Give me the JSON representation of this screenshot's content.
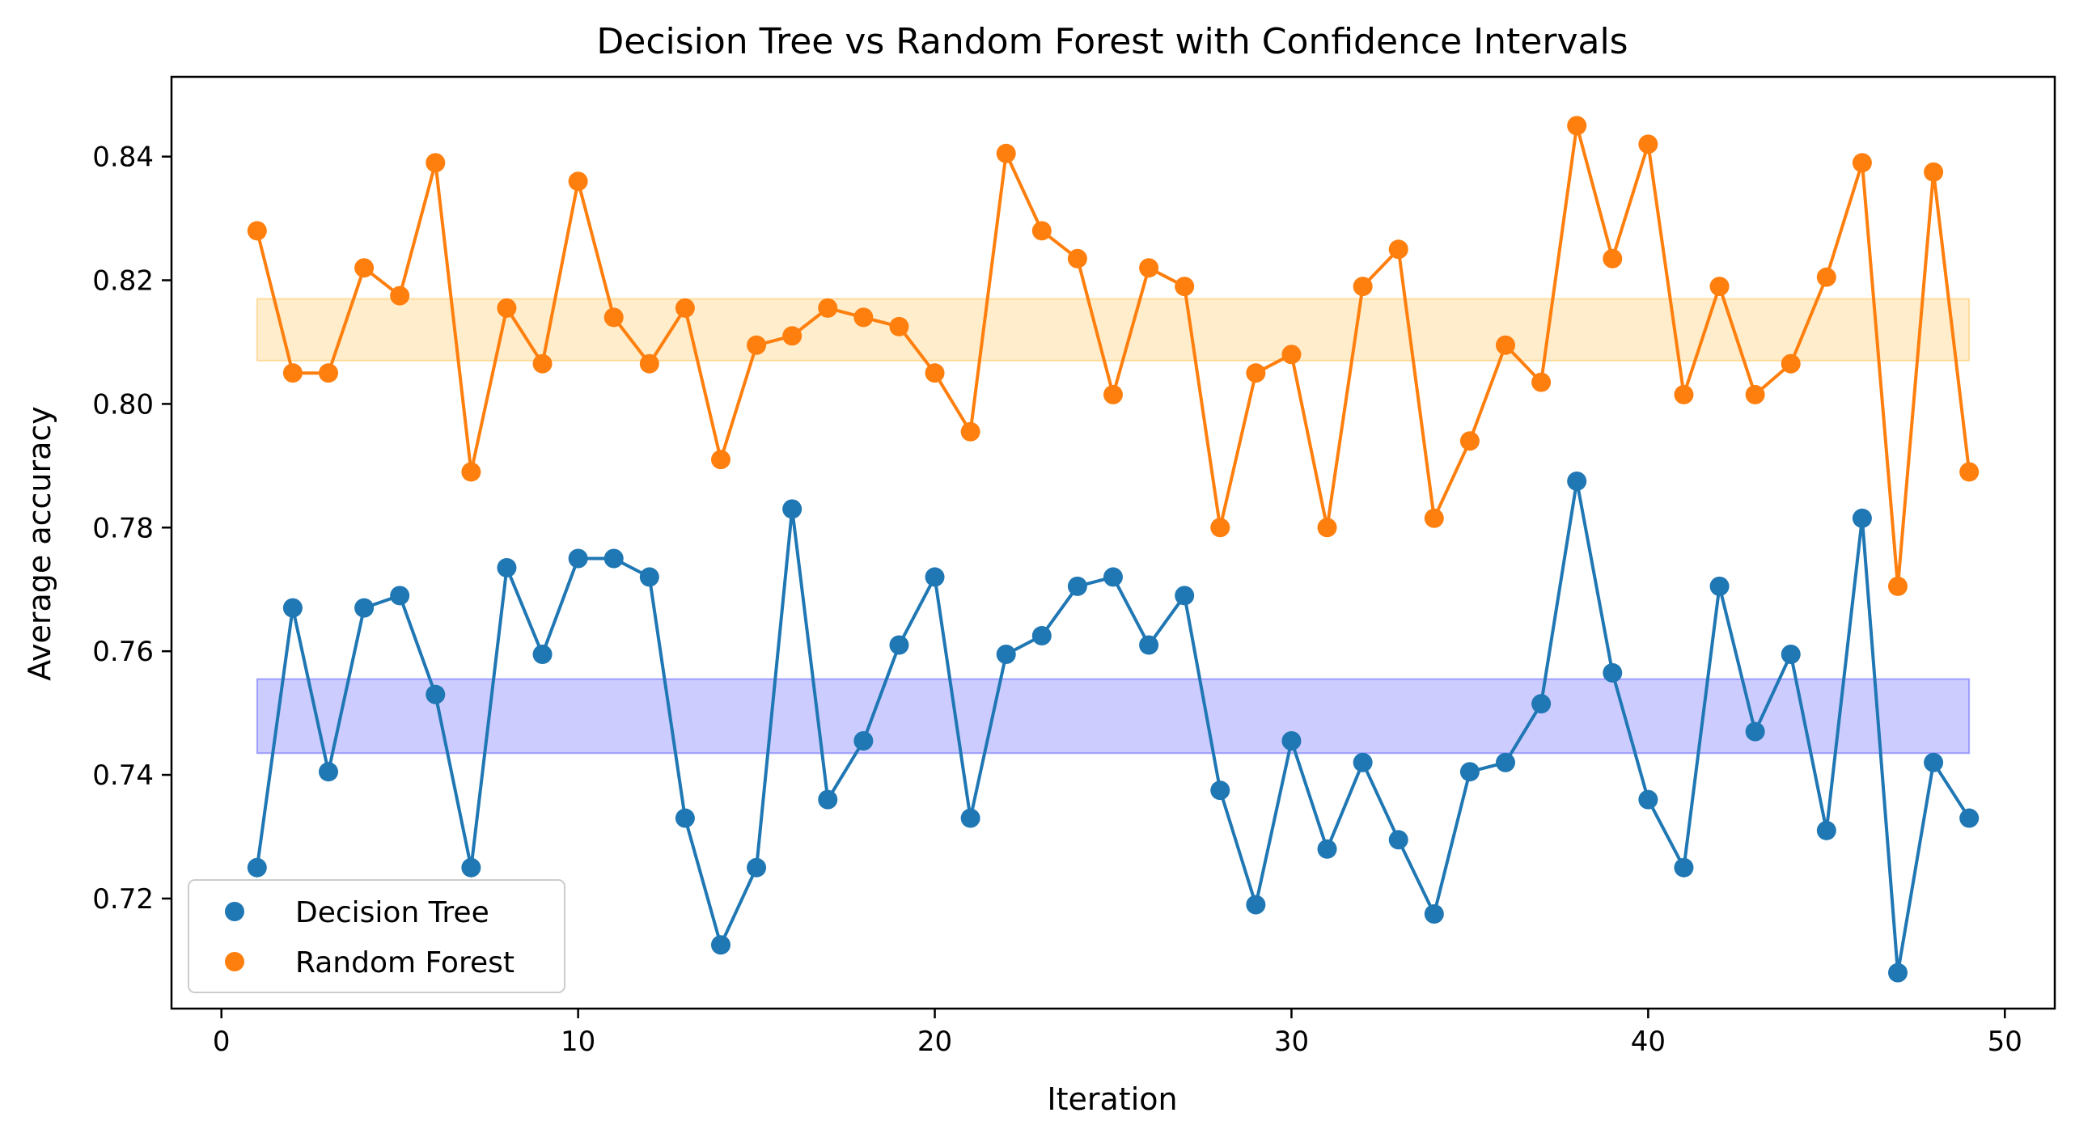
{
  "chart_data": {
    "type": "line",
    "title": "Decision Tree vs Random Forest with Confidence Intervals",
    "xlabel": "Iteration",
    "ylabel": "Average accuracy",
    "xlim": [
      -1.4,
      51.4
    ],
    "ylim": [
      0.7022,
      0.8529
    ],
    "xticks": [
      0,
      10,
      20,
      30,
      40,
      50
    ],
    "yticks": [
      0.72,
      0.74,
      0.76,
      0.78,
      0.8,
      0.82,
      0.84
    ],
    "grid": false,
    "legend_position": "lower-left",
    "x": [
      1,
      2,
      3,
      4,
      5,
      6,
      7,
      8,
      9,
      10,
      11,
      12,
      13,
      14,
      15,
      16,
      17,
      18,
      19,
      20,
      21,
      22,
      23,
      24,
      25,
      26,
      27,
      28,
      29,
      30,
      31,
      32,
      33,
      34,
      35,
      36,
      37,
      38,
      39,
      40,
      41,
      42,
      43,
      44,
      45,
      46,
      47,
      48,
      49
    ],
    "series": [
      {
        "name": "Decision Tree",
        "color": "#1f77b4",
        "values": [
          0.725,
          0.767,
          0.7405,
          0.767,
          0.769,
          0.753,
          0.725,
          0.7735,
          0.7595,
          0.775,
          0.775,
          0.772,
          0.733,
          0.7125,
          0.725,
          0.783,
          0.736,
          0.7455,
          0.761,
          0.772,
          0.733,
          0.7595,
          0.7625,
          0.7705,
          0.772,
          0.761,
          0.769,
          0.7375,
          0.719,
          0.7455,
          0.728,
          0.742,
          0.7295,
          0.7175,
          0.7405,
          0.742,
          0.7515,
          0.7875,
          0.7565,
          0.736,
          0.725,
          0.7705,
          0.747,
          0.7595,
          0.731,
          0.7815,
          0.708,
          0.742,
          0.733
        ],
        "ci_band": {
          "x_range": [
            1,
            49
          ],
          "lower": 0.7435,
          "upper": 0.7555,
          "color": "#0000ff",
          "alpha": 0.2
        }
      },
      {
        "name": "Random Forest",
        "color": "#ff7f0e",
        "values": [
          0.828,
          0.805,
          0.805,
          0.822,
          0.8175,
          0.839,
          0.789,
          0.8155,
          0.8065,
          0.836,
          0.814,
          0.8065,
          0.8155,
          0.791,
          0.8095,
          0.811,
          0.8155,
          0.814,
          0.8125,
          0.805,
          0.7955,
          0.8405,
          0.828,
          0.8235,
          0.8015,
          0.822,
          0.819,
          0.78,
          0.805,
          0.808,
          0.78,
          0.819,
          0.825,
          0.7815,
          0.794,
          0.8095,
          0.8035,
          0.845,
          0.8235,
          0.842,
          0.8015,
          0.819,
          0.8015,
          0.8065,
          0.8205,
          0.839,
          0.7705,
          0.8375,
          0.789
        ],
        "ci_band": {
          "x_range": [
            1,
            49
          ],
          "lower": 0.807,
          "upper": 0.817,
          "color": "#ffa500",
          "alpha": 0.2
        }
      }
    ]
  }
}
